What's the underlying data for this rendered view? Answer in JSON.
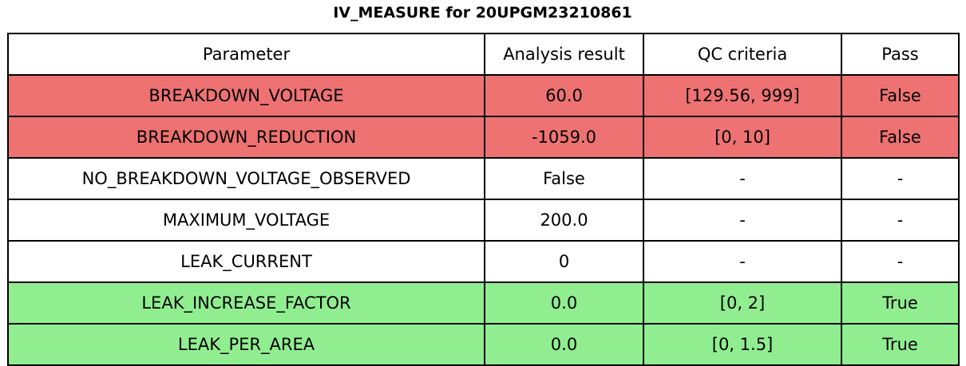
{
  "chart_data": {
    "type": "table",
    "title": "IV_MEASURE for 20UPGM23210861",
    "columns": [
      "Parameter",
      "Analysis result",
      "QC criteria",
      "Pass"
    ],
    "rows": [
      {
        "parameter": "BREAKDOWN_VOLTAGE",
        "analysis_result": "60.0",
        "qc_criteria": "[129.56, 999]",
        "pass": "False",
        "status": "fail"
      },
      {
        "parameter": "BREAKDOWN_REDUCTION",
        "analysis_result": "-1059.0",
        "qc_criteria": "[0, 10]",
        "pass": "False",
        "status": "fail"
      },
      {
        "parameter": "NO_BREAKDOWN_VOLTAGE_OBSERVED",
        "analysis_result": "False",
        "qc_criteria": "-",
        "pass": "-",
        "status": "neutral"
      },
      {
        "parameter": "MAXIMUM_VOLTAGE",
        "analysis_result": "200.0",
        "qc_criteria": "-",
        "pass": "-",
        "status": "neutral"
      },
      {
        "parameter": "LEAK_CURRENT",
        "analysis_result": "0",
        "qc_criteria": "-",
        "pass": "-",
        "status": "neutral"
      },
      {
        "parameter": "LEAK_INCREASE_FACTOR",
        "analysis_result": "0.0",
        "qc_criteria": "[0, 2]",
        "pass": "True",
        "status": "pass"
      },
      {
        "parameter": "LEAK_PER_AREA",
        "analysis_result": "0.0",
        "qc_criteria": "[0, 1.5]",
        "pass": "True",
        "status": "pass"
      }
    ],
    "colors": {
      "fail_row": "#ee7272",
      "pass_row": "#90ee90",
      "neutral_row": "#ffffff",
      "border": "#000000",
      "text": "#000000"
    },
    "layout": {
      "legend": "none",
      "grid": "full-borders"
    }
  }
}
